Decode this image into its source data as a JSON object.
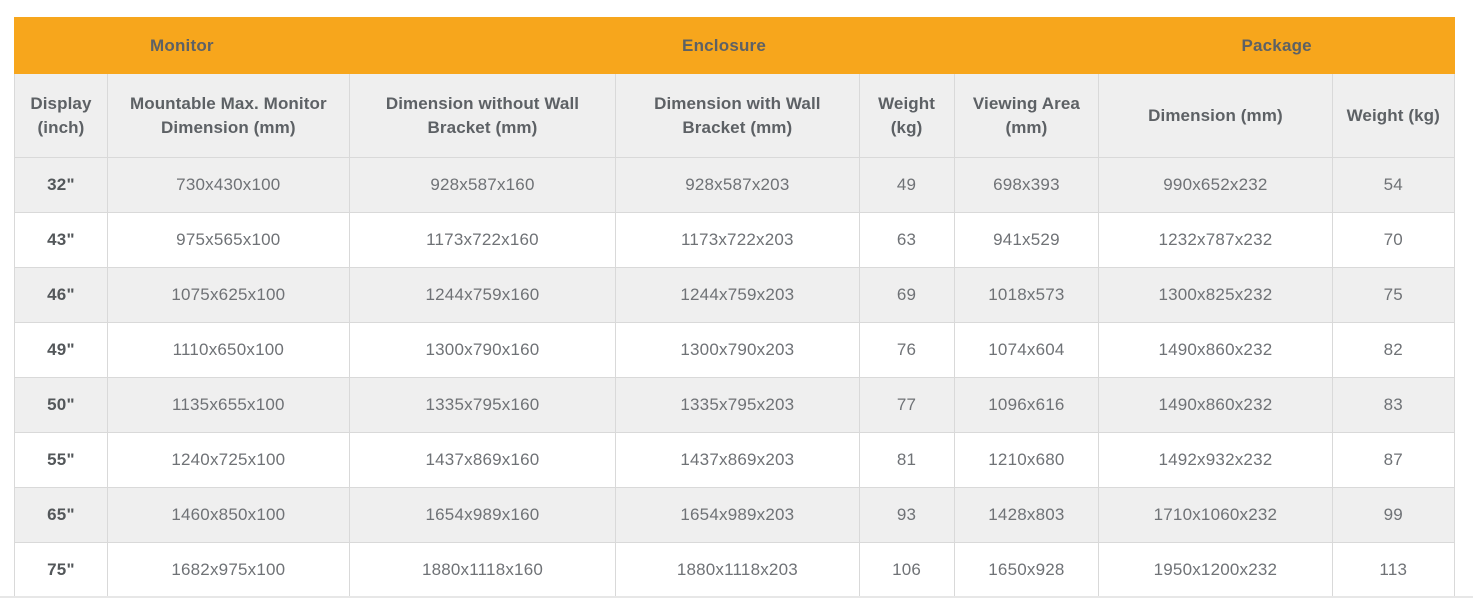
{
  "colors": {
    "accent": "#f7a61c",
    "header_bg": "#efefef",
    "stripe_bg": "#efefef",
    "border": "#d9d9d9",
    "header_text": "#5d6165",
    "cell_text": "#6f7276",
    "display_text": "#53575a",
    "page_bg": "#ffffff",
    "bottom_rule": "#e7e7e7"
  },
  "table": {
    "groups": [
      {
        "key": "monitor",
        "label": "Monitor",
        "colspan": 2
      },
      {
        "key": "enclosure",
        "label": "Enclosure",
        "colspan": 4
      },
      {
        "key": "package",
        "label": "Package",
        "colspan": 2
      }
    ],
    "columns": [
      {
        "key": "display-inch",
        "label": "Display (inch)"
      },
      {
        "key": "mountable-max-monitor-dimension",
        "label": "Mountable Max. Monitor Dimension (mm)"
      },
      {
        "key": "dimension-without-wall-bracket",
        "label": "Dimension without Wall Bracket (mm)"
      },
      {
        "key": "dimension-with-wall-bracket",
        "label": "Dimension with Wall Bracket (mm)"
      },
      {
        "key": "enclosure-weight",
        "label": "Weight (kg)"
      },
      {
        "key": "viewing-area",
        "label": "Viewing Area (mm)"
      },
      {
        "key": "package-dimension",
        "label": "Dimension (mm)"
      },
      {
        "key": "package-weight",
        "label": "Weight (kg)"
      }
    ],
    "rows": [
      [
        "32\"",
        "730x430x100",
        "928x587x160",
        "928x587x203",
        "49",
        "698x393",
        "990x652x232",
        "54"
      ],
      [
        "43\"",
        "975x565x100",
        "1173x722x160",
        "1173x722x203",
        "63",
        "941x529",
        "1232x787x232",
        "70"
      ],
      [
        "46\"",
        "1075x625x100",
        "1244x759x160",
        "1244x759x203",
        "69",
        "1018x573",
        "1300x825x232",
        "75"
      ],
      [
        "49\"",
        "1110x650x100",
        "1300x790x160",
        "1300x790x203",
        "76",
        "1074x604",
        "1490x860x232",
        "82"
      ],
      [
        "50\"",
        "1135x655x100",
        "1335x795x160",
        "1335x795x203",
        "77",
        "1096x616",
        "1490x860x232",
        "83"
      ],
      [
        "55\"",
        "1240x725x100",
        "1437x869x160",
        "1437x869x203",
        "81",
        "1210x680",
        "1492x932x232",
        "87"
      ],
      [
        "65\"",
        "1460x850x100",
        "1654x989x160",
        "1654x989x203",
        "93",
        "1428x803",
        "1710x1060x232",
        "99"
      ],
      [
        "75\"",
        "1682x975x100",
        "1880x1118x160",
        "1880x1118x203",
        "106",
        "1650x928",
        "1950x1200x232",
        "113"
      ]
    ]
  },
  "chart_data": {
    "type": "table",
    "title": "",
    "column_groups": [
      {
        "label": "Monitor",
        "span": 2
      },
      {
        "label": "Enclosure",
        "span": 4
      },
      {
        "label": "Package",
        "span": 2
      }
    ],
    "columns": [
      "Display (inch)",
      "Mountable Max. Monitor Dimension (mm)",
      "Dimension without Wall Bracket (mm)",
      "Dimension with Wall Bracket (mm)",
      "Weight (kg)",
      "Viewing Area (mm)",
      "Dimension (mm)",
      "Weight (kg)"
    ],
    "rows": [
      [
        "32\"",
        "730x430x100",
        "928x587x160",
        "928x587x203",
        "49",
        "698x393",
        "990x652x232",
        "54"
      ],
      [
        "43\"",
        "975x565x100",
        "1173x722x160",
        "1173x722x203",
        "63",
        "941x529",
        "1232x787x232",
        "70"
      ],
      [
        "46\"",
        "1075x625x100",
        "1244x759x160",
        "1244x759x203",
        "69",
        "1018x573",
        "1300x825x232",
        "75"
      ],
      [
        "49\"",
        "1110x650x100",
        "1300x790x160",
        "1300x790x203",
        "76",
        "1074x604",
        "1490x860x232",
        "82"
      ],
      [
        "50\"",
        "1135x655x100",
        "1335x795x160",
        "1335x795x203",
        "77",
        "1096x616",
        "1490x860x232",
        "83"
      ],
      [
        "55\"",
        "1240x725x100",
        "1437x869x160",
        "1437x869x203",
        "81",
        "1210x680",
        "1492x932x232",
        "87"
      ],
      [
        "65\"",
        "1460x850x100",
        "1654x989x160",
        "1654x989x203",
        "93",
        "1428x803",
        "1710x1060x232",
        "99"
      ],
      [
        "75\"",
        "1682x975x100",
        "1880x1118x160",
        "1880x1118x203",
        "106",
        "1650x928",
        "1950x1200x232",
        "113"
      ]
    ]
  }
}
